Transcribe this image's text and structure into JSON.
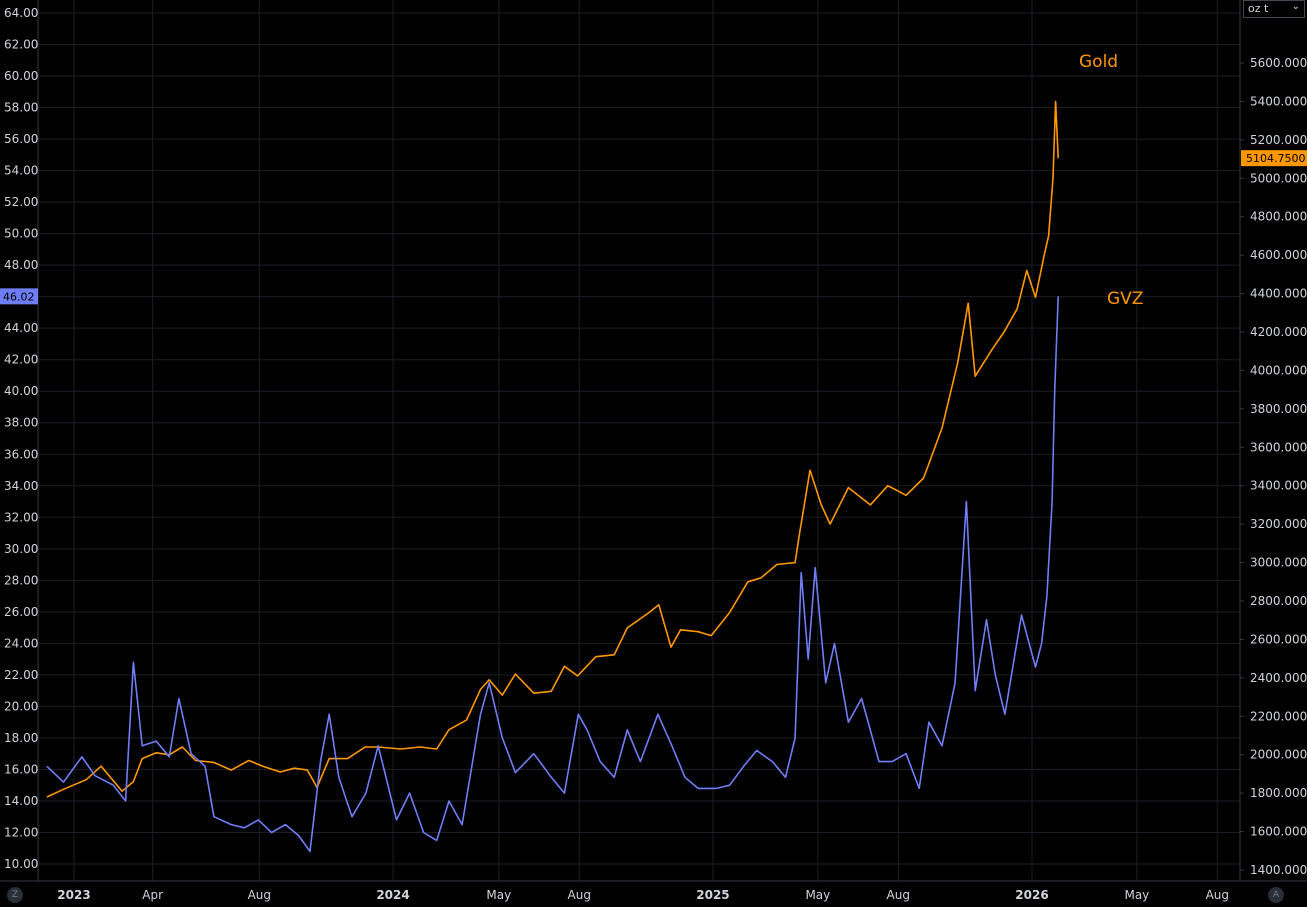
{
  "chart_data": {
    "type": "line",
    "left_axis": {
      "ticks": [
        "10.00",
        "12.00",
        "14.00",
        "16.00",
        "18.00",
        "20.00",
        "22.00",
        "24.00",
        "26.00",
        "28.00",
        "30.00",
        "32.00",
        "34.00",
        "36.00",
        "38.00",
        "40.00",
        "42.00",
        "44.00",
        "46.00",
        "48.00",
        "50.00",
        "52.00",
        "54.00",
        "56.00",
        "58.00",
        "60.00",
        "62.00",
        "64.00"
      ],
      "range": [
        9,
        64.5
      ]
    },
    "right_axis": {
      "ticks": [
        "1400.0000",
        "1600.0000",
        "1800.0000",
        "2000.0000",
        "2200.0000",
        "2400.0000",
        "2600.0000",
        "2800.0000",
        "3000.0000",
        "3200.0000",
        "3400.0000",
        "3600.0000",
        "3800.0000",
        "4000.0000",
        "4200.0000",
        "4400.0000",
        "4600.0000",
        "4800.0000",
        "5000.0000",
        "5200.0000",
        "5400.0000",
        "5600.0000"
      ],
      "range": [
        1310,
        5800
      ]
    },
    "x_axis": {
      "ticks": [
        {
          "label": "2023",
          "date": "2023-01-01",
          "bold": true
        },
        {
          "label": "Apr",
          "date": "2023-04-01",
          "bold": false
        },
        {
          "label": "Aug",
          "date": "2023-08-01",
          "bold": false
        },
        {
          "label": "2024",
          "date": "2024-01-01",
          "bold": true
        },
        {
          "label": "May",
          "date": "2024-05-01",
          "bold": false
        },
        {
          "label": "Aug",
          "date": "2024-08-01",
          "bold": false
        },
        {
          "label": "2025",
          "date": "2025-01-01",
          "bold": true
        },
        {
          "label": "May",
          "date": "2025-05-01",
          "bold": false
        },
        {
          "label": "Aug",
          "date": "2025-08-01",
          "bold": false
        },
        {
          "label": "2026",
          "date": "2026-01-01",
          "bold": true
        },
        {
          "label": "May",
          "date": "2026-05-01",
          "bold": false
        },
        {
          "label": "Aug",
          "date": "2026-08-01",
          "bold": false
        }
      ]
    },
    "grid": true,
    "series": [
      {
        "name": "Gold",
        "axis": "right",
        "color": "#ff9800",
        "last_value_label": "5104.7500",
        "points": [
          [
            "2022-12-01",
            1780
          ],
          [
            "2022-12-20",
            1820
          ],
          [
            "2023-01-15",
            1870
          ],
          [
            "2023-02-01",
            1940
          ],
          [
            "2023-02-25",
            1810
          ],
          [
            "2023-03-10",
            1860
          ],
          [
            "2023-03-20",
            1980
          ],
          [
            "2023-04-05",
            2010
          ],
          [
            "2023-04-20",
            2000
          ],
          [
            "2023-05-05",
            2040
          ],
          [
            "2023-05-20",
            1970
          ],
          [
            "2023-06-10",
            1960
          ],
          [
            "2023-06-30",
            1920
          ],
          [
            "2023-07-20",
            1970
          ],
          [
            "2023-08-05",
            1940
          ],
          [
            "2023-08-25",
            1910
          ],
          [
            "2023-09-10",
            1930
          ],
          [
            "2023-09-25",
            1920
          ],
          [
            "2023-10-06",
            1830
          ],
          [
            "2023-10-20",
            1980
          ],
          [
            "2023-11-10",
            1980
          ],
          [
            "2023-11-30",
            2040
          ],
          [
            "2023-12-15",
            2040
          ],
          [
            "2024-01-10",
            2030
          ],
          [
            "2024-02-01",
            2040
          ],
          [
            "2024-02-20",
            2030
          ],
          [
            "2024-03-05",
            2130
          ],
          [
            "2024-03-25",
            2180
          ],
          [
            "2024-04-10",
            2340
          ],
          [
            "2024-04-20",
            2390
          ],
          [
            "2024-05-05",
            2310
          ],
          [
            "2024-05-20",
            2420
          ],
          [
            "2024-06-10",
            2320
          ],
          [
            "2024-06-30",
            2330
          ],
          [
            "2024-07-15",
            2460
          ],
          [
            "2024-07-30",
            2410
          ],
          [
            "2024-08-20",
            2510
          ],
          [
            "2024-09-10",
            2520
          ],
          [
            "2024-09-25",
            2660
          ],
          [
            "2024-10-20",
            2740
          ],
          [
            "2024-10-31",
            2780
          ],
          [
            "2024-11-14",
            2560
          ],
          [
            "2024-11-25",
            2650
          ],
          [
            "2024-12-15",
            2640
          ],
          [
            "2024-12-30",
            2620
          ],
          [
            "2025-01-20",
            2740
          ],
          [
            "2025-02-10",
            2900
          ],
          [
            "2025-02-25",
            2920
          ],
          [
            "2025-03-15",
            2990
          ],
          [
            "2025-04-05",
            3000
          ],
          [
            "2025-04-10",
            3150
          ],
          [
            "2025-04-22",
            3480
          ],
          [
            "2025-05-05",
            3300
          ],
          [
            "2025-05-15",
            3200
          ],
          [
            "2025-06-05",
            3390
          ],
          [
            "2025-06-30",
            3300
          ],
          [
            "2025-07-20",
            3400
          ],
          [
            "2025-08-10",
            3350
          ],
          [
            "2025-08-30",
            3440
          ],
          [
            "2025-09-20",
            3700
          ],
          [
            "2025-10-08",
            4040
          ],
          [
            "2025-10-20",
            4350
          ],
          [
            "2025-10-28",
            3970
          ],
          [
            "2025-11-15",
            4100
          ],
          [
            "2025-11-30",
            4200
          ],
          [
            "2025-12-15",
            4320
          ],
          [
            "2025-12-26",
            4520
          ],
          [
            "2026-01-05",
            4380
          ],
          [
            "2026-01-15",
            4600
          ],
          [
            "2026-01-20",
            4700
          ],
          [
            "2026-01-25",
            5000
          ],
          [
            "2026-01-28",
            5400
          ],
          [
            "2026-01-31",
            5104.75
          ]
        ]
      },
      {
        "name": "GVZ",
        "axis": "left",
        "color": "#6f7ef5",
        "last_value_label": "46.02",
        "points": [
          [
            "2022-12-01",
            16.2
          ],
          [
            "2022-12-20",
            15.2
          ],
          [
            "2023-01-10",
            16.8
          ],
          [
            "2023-01-25",
            15.6
          ],
          [
            "2023-02-15",
            15.0
          ],
          [
            "2023-03-01",
            14.0
          ],
          [
            "2023-03-10",
            22.8
          ],
          [
            "2023-03-20",
            17.5
          ],
          [
            "2023-04-05",
            17.8
          ],
          [
            "2023-04-20",
            16.8
          ],
          [
            "2023-05-01",
            20.5
          ],
          [
            "2023-05-15",
            17.0
          ],
          [
            "2023-05-31",
            16.2
          ],
          [
            "2023-06-10",
            13.0
          ],
          [
            "2023-06-30",
            12.5
          ],
          [
            "2023-07-15",
            12.3
          ],
          [
            "2023-07-31",
            12.8
          ],
          [
            "2023-08-15",
            12.0
          ],
          [
            "2023-08-31",
            12.5
          ],
          [
            "2023-09-15",
            11.8
          ],
          [
            "2023-09-28",
            10.8
          ],
          [
            "2023-10-10",
            16.5
          ],
          [
            "2023-10-20",
            19.5
          ],
          [
            "2023-10-31",
            15.5
          ],
          [
            "2023-11-15",
            13.0
          ],
          [
            "2023-12-01",
            14.5
          ],
          [
            "2023-12-15",
            17.5
          ],
          [
            "2024-01-05",
            12.8
          ],
          [
            "2024-01-20",
            14.5
          ],
          [
            "2024-02-05",
            12.0
          ],
          [
            "2024-02-20",
            11.5
          ],
          [
            "2024-03-05",
            14.0
          ],
          [
            "2024-03-20",
            12.5
          ],
          [
            "2024-04-10",
            19.5
          ],
          [
            "2024-04-20",
            21.5
          ],
          [
            "2024-05-05",
            18.0
          ],
          [
            "2024-05-20",
            15.8
          ],
          [
            "2024-06-10",
            17.0
          ],
          [
            "2024-06-30",
            15.5
          ],
          [
            "2024-07-15",
            14.5
          ],
          [
            "2024-07-31",
            19.5
          ],
          [
            "2024-08-10",
            18.5
          ],
          [
            "2024-08-25",
            16.5
          ],
          [
            "2024-09-10",
            15.5
          ],
          [
            "2024-09-25",
            18.5
          ],
          [
            "2024-10-10",
            16.5
          ],
          [
            "2024-10-30",
            19.5
          ],
          [
            "2024-11-15",
            17.5
          ],
          [
            "2024-11-30",
            15.5
          ],
          [
            "2024-12-15",
            14.8
          ],
          [
            "2025-01-05",
            14.8
          ],
          [
            "2025-01-20",
            15.0
          ],
          [
            "2025-02-05",
            16.2
          ],
          [
            "2025-02-20",
            17.2
          ],
          [
            "2025-03-10",
            16.5
          ],
          [
            "2025-03-25",
            15.5
          ],
          [
            "2025-04-05",
            18.0
          ],
          [
            "2025-04-12",
            28.5
          ],
          [
            "2025-04-20",
            23.0
          ],
          [
            "2025-04-28",
            28.8
          ],
          [
            "2025-05-10",
            21.5
          ],
          [
            "2025-05-20",
            24.0
          ],
          [
            "2025-06-05",
            19.0
          ],
          [
            "2025-06-20",
            20.5
          ],
          [
            "2025-07-10",
            16.5
          ],
          [
            "2025-07-25",
            16.5
          ],
          [
            "2025-08-10",
            17.0
          ],
          [
            "2025-08-25",
            14.8
          ],
          [
            "2025-09-05",
            19.0
          ],
          [
            "2025-09-20",
            17.5
          ],
          [
            "2025-10-05",
            21.5
          ],
          [
            "2025-10-18",
            33.0
          ],
          [
            "2025-10-28",
            21.0
          ],
          [
            "2025-11-10",
            25.5
          ],
          [
            "2025-11-20",
            22.0
          ],
          [
            "2025-12-01",
            19.5
          ],
          [
            "2025-12-10",
            22.5
          ],
          [
            "2025-12-20",
            25.8
          ],
          [
            "2026-01-05",
            22.5
          ],
          [
            "2026-01-12",
            24.0
          ],
          [
            "2026-01-18",
            27.0
          ],
          [
            "2026-01-24",
            33.0
          ],
          [
            "2026-01-27",
            40.0
          ],
          [
            "2026-01-31",
            46.02
          ]
        ]
      }
    ]
  },
  "ui": {
    "unit_selector": "oz t",
    "chevron": "⌄",
    "left_corner": "Z",
    "right_corner": "A"
  }
}
